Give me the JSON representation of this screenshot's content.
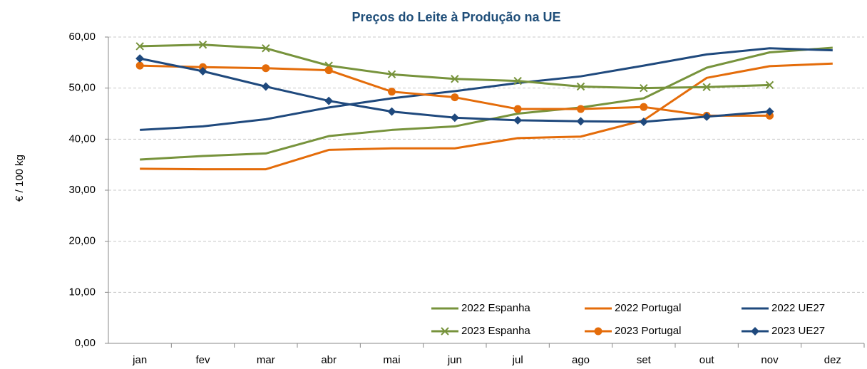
{
  "chart_data": {
    "type": "line",
    "title": "Preços do Leite à Produção na UE",
    "y_label": "€  / 100 kg",
    "categories": [
      "jan",
      "fev",
      "mar",
      "abr",
      "mai",
      "jun",
      "jul",
      "ago",
      "set",
      "out",
      "nov",
      "dez"
    ],
    "series": [
      {
        "name": "2022 Espanha",
        "color": "#77933c",
        "marker": "none",
        "values": [
          36.0,
          36.7,
          37.2,
          40.6,
          41.8,
          42.5,
          45.0,
          46.2,
          48.0,
          54.0,
          57.0,
          57.9
        ]
      },
      {
        "name": "2022 Portugal",
        "color": "#e46c0a",
        "marker": "none",
        "values": [
          34.2,
          34.1,
          34.1,
          37.9,
          38.2,
          38.2,
          40.2,
          40.5,
          43.7,
          52.0,
          54.3,
          54.8
        ]
      },
      {
        "name": "2022 UE27",
        "color": "#1f497d",
        "marker": "none",
        "values": [
          41.8,
          42.5,
          43.9,
          46.2,
          48.0,
          49.4,
          51.0,
          52.3,
          54.4,
          56.6,
          57.8,
          57.4
        ]
      },
      {
        "name": "2023 Espanha",
        "color": "#77933c",
        "marker": "x",
        "values": [
          58.2,
          58.5,
          57.8,
          54.4,
          52.7,
          51.8,
          51.4,
          50.3,
          50.0,
          50.2,
          50.6,
          null
        ]
      },
      {
        "name": "2023 Portugal",
        "color": "#e46c0a",
        "marker": "circle",
        "values": [
          54.4,
          54.1,
          53.9,
          53.5,
          49.3,
          48.2,
          45.9,
          45.9,
          46.3,
          44.6,
          44.6,
          null
        ]
      },
      {
        "name": "2023 UE27",
        "color": "#1f497d",
        "marker": "diamond",
        "values": [
          55.8,
          53.3,
          50.3,
          47.5,
          45.4,
          44.2,
          43.7,
          43.5,
          43.4,
          44.4,
          45.4,
          null
        ]
      }
    ],
    "ylim": [
      0,
      60
    ],
    "yticks": [
      {
        "value": 0,
        "label": "0,00"
      },
      {
        "value": 10,
        "label": "10,00"
      },
      {
        "value": 20,
        "label": "20,00"
      },
      {
        "value": 30,
        "label": "30,00"
      },
      {
        "value": 40,
        "label": "40,00"
      },
      {
        "value": 50,
        "label": "50,00"
      },
      {
        "value": 60,
        "label": "60,00"
      }
    ],
    "grid": true,
    "legend": "bottom-right"
  }
}
